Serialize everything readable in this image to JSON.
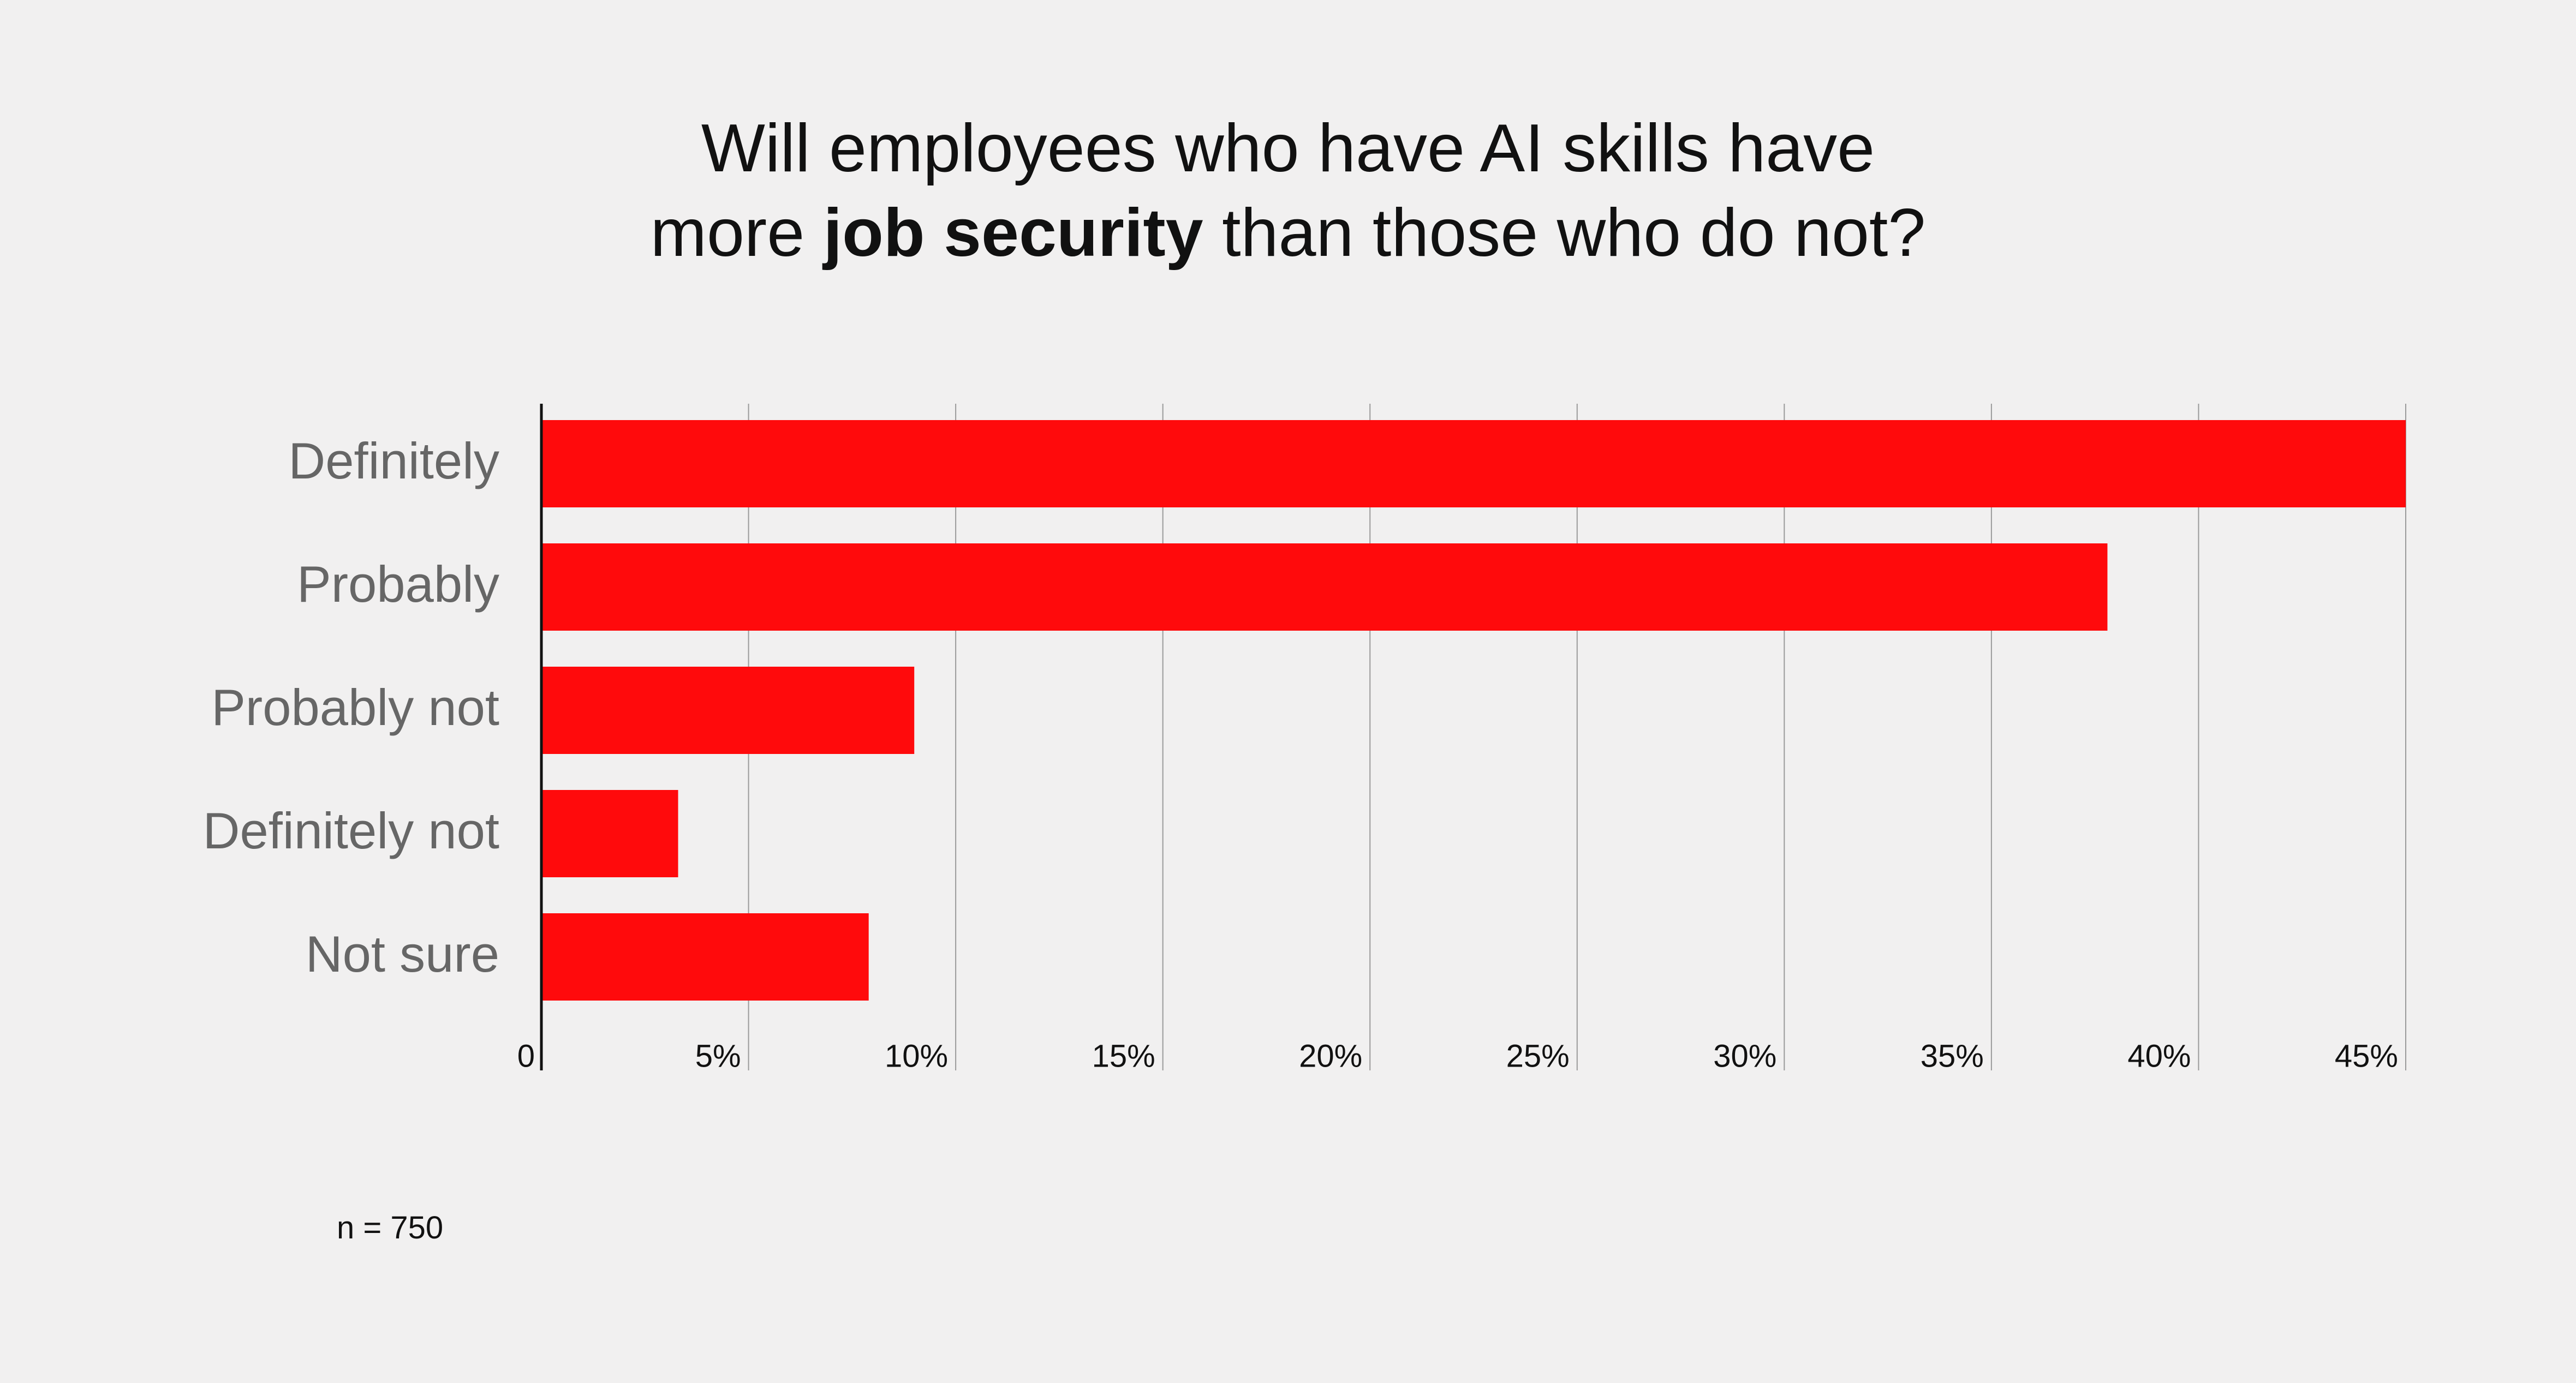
{
  "colors": {
    "background": "#f1f0f0",
    "bar": "#ff0a0c",
    "gridline": "#9a9a9a",
    "axis": "#111111",
    "category_label": "#666666",
    "tick_label": "#111111"
  },
  "chart_data": {
    "type": "bar",
    "orientation": "horizontal",
    "title_line_1": "Will employees who have AI skills have",
    "title_line_2_prefix": "more ",
    "title_line_2_bold": "job security",
    "title_line_2_suffix": " than those who do not?",
    "title": "Will employees who have AI skills have more job security than those who do not?",
    "categories": [
      "Definitely",
      "Probably",
      "Probably not",
      "Definitely not",
      "Not sure"
    ],
    "values": [
      45,
      37.8,
      9,
      3.3,
      7.9
    ],
    "xlim": [
      0,
      45
    ],
    "xticks": [
      0,
      5,
      10,
      15,
      20,
      25,
      30,
      35,
      40,
      45
    ],
    "xtick_labels": [
      "0",
      "5%",
      "10%",
      "15%",
      "20%",
      "25%",
      "30%",
      "35%",
      "40%",
      "45%"
    ],
    "grid": true,
    "xlabel": "",
    "ylabel": "",
    "legend": "none"
  },
  "footnote": "n = 750"
}
